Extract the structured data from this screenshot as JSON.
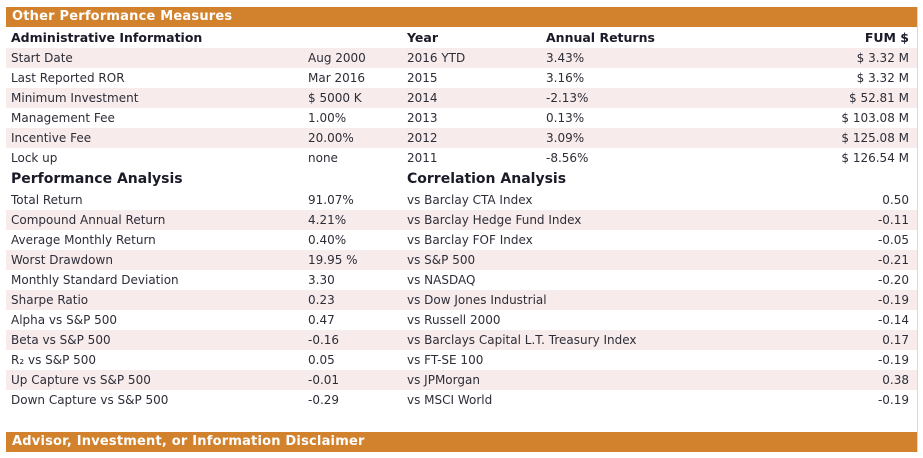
{
  "title_bar": {
    "label": "Other Performance Measures"
  },
  "footer_bar": {
    "label": "Advisor, Investment, or Information Disclaimer"
  },
  "colors": {
    "accent_orange": "#d2822d",
    "row_stripe_pink": "#f7eceb",
    "header_text": "#1a1a28",
    "body_text": "#2d2d38"
  },
  "admin_section": {
    "headers": {
      "left": "Administrative Information",
      "year": "Year",
      "annual_returns": "Annual Returns",
      "fum": "FUM $"
    },
    "rows": [
      {
        "label": "Start Date",
        "value": "Aug 2000",
        "year": "2016 YTD",
        "annual_return": "3.43%",
        "fum": "$ 3.32 M"
      },
      {
        "label": "Last Reported ROR",
        "value": "Mar 2016",
        "year": "2015",
        "annual_return": "3.16%",
        "fum": "$ 3.32 M"
      },
      {
        "label": "Minimum Investment",
        "value": "$ 5000 K",
        "year": "2014",
        "annual_return": "-2.13%",
        "fum": "$ 52.81 M"
      },
      {
        "label": "Management Fee",
        "value": "1.00%",
        "year": "2013",
        "annual_return": "0.13%",
        "fum": "$ 103.08 M"
      },
      {
        "label": "Incentive Fee",
        "value": "20.00%",
        "year": "2012",
        "annual_return": "3.09%",
        "fum": "$ 125.08 M"
      },
      {
        "label": "Lock up",
        "value": "none",
        "year": "2011",
        "annual_return": "-8.56%",
        "fum": "$ 126.54 M"
      }
    ]
  },
  "analysis_section": {
    "left_header": "Performance Analysis",
    "right_header": "Correlation Analysis",
    "rows": [
      {
        "left_label": "Total Return",
        "left_value": "91.07%",
        "right_label": "vs Barclay CTA Index",
        "right_value": "0.50"
      },
      {
        "left_label": "Compound Annual Return",
        "left_value": "4.21%",
        "right_label": "vs Barclay Hedge Fund Index",
        "right_value": "-0.11"
      },
      {
        "left_label": "Average Monthly Return",
        "left_value": "0.40%",
        "right_label": "vs Barclay FOF Index",
        "right_value": "-0.05"
      },
      {
        "left_label": "Worst Drawdown",
        "left_value": "19.95 %",
        "right_label": "vs S&P 500",
        "right_value": "-0.21"
      },
      {
        "left_label": "Monthly Standard Deviation",
        "left_value": "3.30",
        "right_label": "vs NASDAQ",
        "right_value": "-0.20"
      },
      {
        "left_label": "Sharpe Ratio",
        "left_value": "0.23",
        "right_label": "vs Dow Jones Industrial",
        "right_value": "-0.19"
      },
      {
        "left_label": "Alpha vs S&P 500",
        "left_value": "0.47",
        "right_label": "vs Russell 2000",
        "right_value": "-0.14"
      },
      {
        "left_label": "Beta vs S&P 500",
        "left_value": "-0.16",
        "right_label": "vs Barclays Capital L.T. Treasury Index",
        "right_value": "0.17"
      },
      {
        "left_label": "R₂ vs S&P 500",
        "left_value": "0.05",
        "right_label": "vs FT-SE 100",
        "right_value": "-0.19"
      },
      {
        "left_label": "Up Capture vs S&P 500",
        "left_value": "-0.01",
        "right_label": "vs JPMorgan",
        "right_value": "0.38"
      },
      {
        "left_label": "Down Capture vs S&P 500",
        "left_value": "-0.29",
        "right_label": "vs MSCI World",
        "right_value": "-0.19"
      }
    ]
  }
}
